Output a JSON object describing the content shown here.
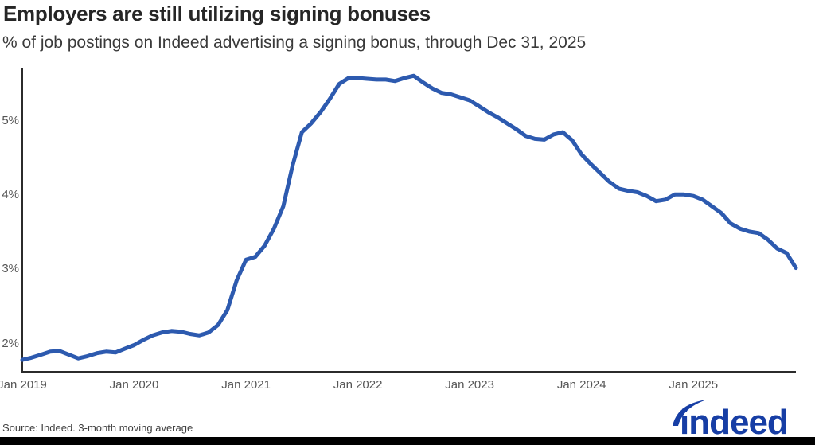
{
  "title": "Employers are still utilizing signing bonuses",
  "subtitle": "% of job postings on Indeed advertising a signing bonus, through Dec 31, 2025",
  "source": "Source: Indeed. 3-month moving average",
  "logo": {
    "text": "indeed",
    "color": "#173EA5"
  },
  "colors": {
    "line": "#2D5AAF",
    "axis": "#2b2b2b",
    "tick_label": "#565656",
    "title_text": "#262626",
    "subtitle_text": "#3a3a3a",
    "footer_bar": "#000000"
  },
  "chart_data": {
    "type": "line",
    "title": "Employers are still utilizing signing bonuses",
    "subtitle": "% of job postings on Indeed advertising a signing bonus, through Dec 31, 2025",
    "xlabel": "",
    "ylabel": "% of job postings advertising a signing bonus",
    "grid": false,
    "legend": null,
    "ylim": [
      1.62,
      5.72
    ],
    "y_ticks": [
      {
        "label": "2%",
        "value": 2
      },
      {
        "label": "3%",
        "value": 3
      },
      {
        "label": "4%",
        "value": 4
      },
      {
        "label": "5%",
        "value": 5
      }
    ],
    "x_ticks": [
      {
        "label": "Jan 2019",
        "month_index": 0
      },
      {
        "label": "Jan 2020",
        "month_index": 12
      },
      {
        "label": "Jan 2021",
        "month_index": 24
      },
      {
        "label": "Jan 2022",
        "month_index": 36
      },
      {
        "label": "Jan 2023",
        "month_index": 48
      },
      {
        "label": "Jan 2024",
        "month_index": 60
      },
      {
        "label": "Jan 2025",
        "month_index": 72
      }
    ],
    "series": [
      {
        "name": "% of job postings on Indeed advertising a signing bonus (3-month moving average)",
        "start": "Jan 2019",
        "end": "Dec 2025",
        "frequency": "monthly",
        "unit": "%",
        "values": [
          1.78,
          1.81,
          1.85,
          1.89,
          1.9,
          1.85,
          1.8,
          1.83,
          1.87,
          1.89,
          1.88,
          1.93,
          1.98,
          2.05,
          2.11,
          2.15,
          2.17,
          2.16,
          2.13,
          2.11,
          2.15,
          2.25,
          2.45,
          2.85,
          3.13,
          3.17,
          3.32,
          3.55,
          3.85,
          4.4,
          4.85,
          4.97,
          5.12,
          5.3,
          5.5,
          5.58,
          5.58,
          5.57,
          5.56,
          5.56,
          5.54,
          5.58,
          5.61,
          5.52,
          5.44,
          5.38,
          5.36,
          5.32,
          5.28,
          5.2,
          5.12,
          5.05,
          4.97,
          4.89,
          4.8,
          4.76,
          4.75,
          4.82,
          4.85,
          4.74,
          4.55,
          4.42,
          4.3,
          4.18,
          4.09,
          4.06,
          4.04,
          3.99,
          3.92,
          3.94,
          4.01,
          4.01,
          3.99,
          3.94,
          3.85,
          3.76,
          3.62,
          3.55,
          3.51,
          3.49,
          3.4,
          3.28,
          3.22,
          3.02
        ]
      }
    ]
  }
}
